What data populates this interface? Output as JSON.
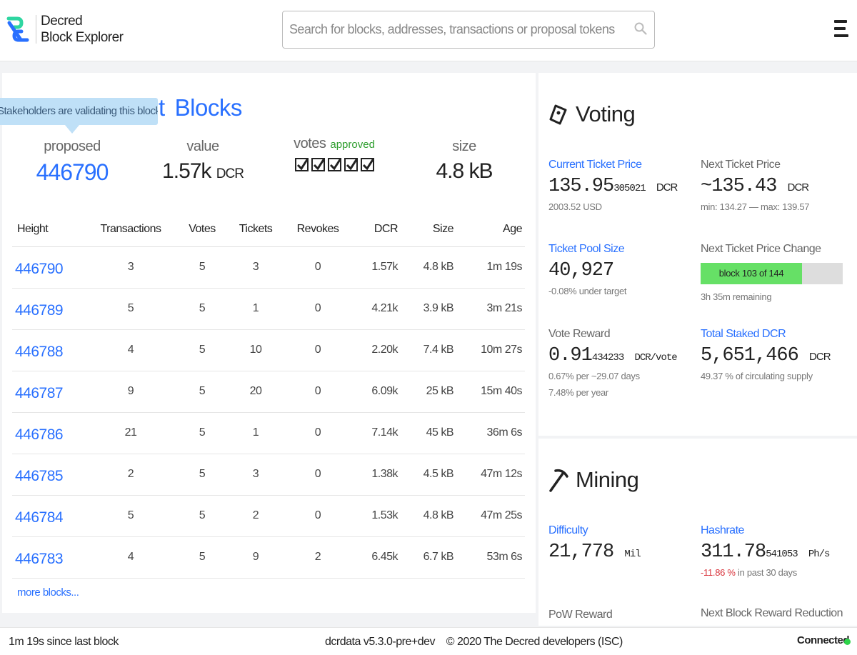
{
  "brand": {
    "line1": "Decred",
    "line2": "Block Explorer"
  },
  "search": {
    "placeholder": "Search for blocks, addresses, transactions or proposal tokens"
  },
  "latest": {
    "title": "Latest Blocks",
    "tooltip": "Stakeholders are validating this block now.",
    "proposed_label": "proposed",
    "proposed_height": "446790",
    "value_label": "value",
    "value": "1.57k",
    "value_unit": "DCR",
    "votes_label": "votes",
    "votes_status": "approved",
    "votes_count": 5,
    "size_label": "size",
    "size": "4.8 kB"
  },
  "table": {
    "headers": [
      "Height",
      "Transactions",
      "Votes",
      "Tickets",
      "Revokes",
      "DCR",
      "Size",
      "Age"
    ],
    "rows": [
      [
        "446790",
        "3",
        "5",
        "3",
        "0",
        "1.57k",
        "4.8 kB",
        "1m 19s"
      ],
      [
        "446789",
        "5",
        "5",
        "1",
        "0",
        "4.21k",
        "3.9 kB",
        "3m 21s"
      ],
      [
        "446788",
        "4",
        "5",
        "10",
        "0",
        "2.20k",
        "7.4 kB",
        "10m 27s"
      ],
      [
        "446787",
        "9",
        "5",
        "20",
        "0",
        "6.09k",
        "25 kB",
        "15m 40s"
      ],
      [
        "446786",
        "21",
        "5",
        "1",
        "0",
        "7.14k",
        "45 kB",
        "36m 6s"
      ],
      [
        "446785",
        "2",
        "5",
        "3",
        "0",
        "1.38k",
        "4.5 kB",
        "47m 12s"
      ],
      [
        "446784",
        "5",
        "5",
        "2",
        "0",
        "1.53k",
        "4.8 kB",
        "47m 25s"
      ],
      [
        "446783",
        "4",
        "5",
        "9",
        "2",
        "6.45k",
        "6.7 kB",
        "53m 6s"
      ]
    ],
    "more": "more blocks..."
  },
  "voting": {
    "title": "Voting",
    "ticket_price_label": "Current Ticket Price",
    "ticket_price_main": "135.95",
    "ticket_price_small": "305021",
    "ticket_price_unit": "DCR",
    "ticket_price_usd": "2003.52 USD",
    "next_price_label": "Next Ticket Price",
    "next_price": "~135.43",
    "next_price_unit": "DCR",
    "next_price_range": "min: 134.27 — max: 139.57",
    "pool_size_label": "Ticket Pool Size",
    "pool_size": "40,927",
    "pool_size_sub": "-0.08% under target",
    "price_change_label": "Next Ticket Price Change",
    "price_change_progress": "block 103 of 144",
    "price_change_fraction": 0.715,
    "price_change_remaining": "3h 35m remaining",
    "vote_reward_label": "Vote Reward",
    "vote_reward_main": "0.91",
    "vote_reward_small": "434233",
    "vote_reward_unit": "DCR/vote",
    "vote_reward_sub1": "0.67% per ~29.07 days",
    "vote_reward_sub2": "7.48% per year",
    "staked_label": "Total Staked DCR",
    "staked": "5,651,466",
    "staked_unit": "DCR",
    "staked_sub": "49.37 % of circulating supply"
  },
  "mining": {
    "title": "Mining",
    "difficulty_label": "Difficulty",
    "difficulty": "21,778",
    "difficulty_unit": "Mil",
    "hashrate_label": "Hashrate",
    "hashrate_main": "311.78",
    "hashrate_small": "541053",
    "hashrate_unit": "Ph/s",
    "hashrate_change": "-11.86 %",
    "hashrate_change_sub": "in past 30 days",
    "pow_reward_label": "PoW Reward",
    "next_reduction_label": "Next Block Reward Reduction"
  },
  "footer": {
    "since_last": "1m 19s since last block",
    "version": "dcrdata v5.3.0-pre+dev",
    "copyright": "© 2020 The Decred developers (ISC)",
    "status": "Connected"
  },
  "colors": {
    "link": "#2970ff",
    "approved": "#2e9e2e",
    "negative": "#d9363e",
    "connected": "#2ed44a",
    "progress": "#66e066"
  }
}
